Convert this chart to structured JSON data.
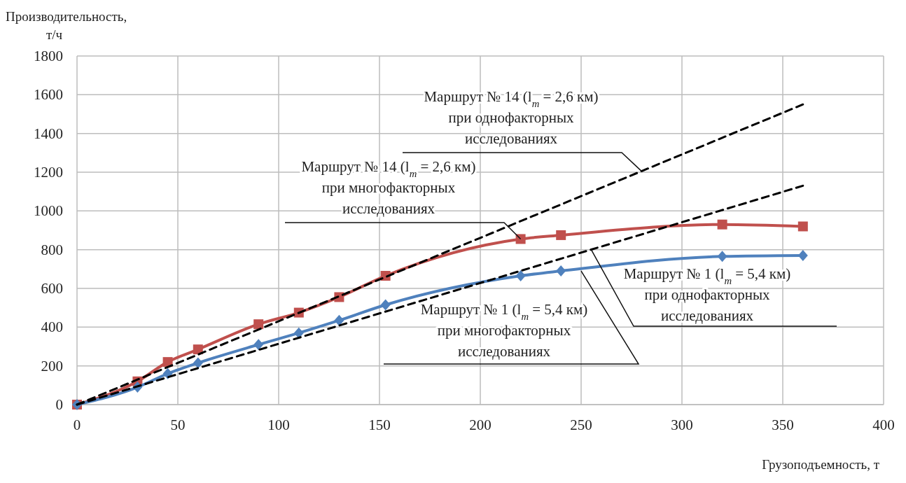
{
  "chart_data": {
    "type": "line",
    "xlabel": "Грузоподъемность, т",
    "ylabel": "Производительность,\nт/ч",
    "xlim": [
      0,
      400
    ],
    "xticks": [
      0,
      50,
      100,
      150,
      200,
      250,
      300,
      350,
      400
    ],
    "ylim": [
      0,
      1800
    ],
    "yticks": [
      0,
      200,
      400,
      600,
      800,
      1000,
      1200,
      1400,
      1600,
      1800
    ],
    "grid": true,
    "series": [
      {
        "color": "#c0504d",
        "marker": "square",
        "line_style": "solid",
        "x": [
          0,
          30,
          45,
          60,
          90,
          110,
          130,
          153,
          220,
          240,
          320,
          360
        ],
        "values": [
          0,
          120,
          220,
          285,
          415,
          475,
          555,
          665,
          855,
          875,
          930,
          920
        ]
      },
      {
        "color": "#4f81bd",
        "marker": "diamond",
        "line_style": "solid",
        "x": [
          0,
          30,
          45,
          60,
          90,
          110,
          130,
          153,
          220,
          240,
          320,
          360
        ],
        "values": [
          0,
          90,
          160,
          215,
          310,
          370,
          435,
          515,
          665,
          690,
          765,
          770
        ]
      },
      {
        "color": "#000000",
        "marker": "none",
        "line_style": "dashed",
        "x": [
          0,
          360
        ],
        "values": [
          0,
          1550
        ]
      },
      {
        "color": "#000000",
        "marker": "none",
        "line_style": "dashed",
        "x": [
          0,
          360
        ],
        "values": [
          0,
          1130
        ]
      }
    ],
    "annotations": [
      {
        "text": "Маршрут № 14 (l$_{m}$ = 2,6 км)\nпри однофакторных\nисследованиях",
        "x": 280,
        "y": 1205
      },
      {
        "text": "Маршрут № 14 (l$_{m}$ = 2,6 км)\nпри многофакторных\nисследованиях",
        "x": 220,
        "y": 855
      },
      {
        "text": "Маршрут № 1 (l$_{m}$ = 5,4 км)\nпри однофакторных\nисследованиях",
        "x": 255,
        "y": 800
      },
      {
        "text": "Маршрут № 1 (l$_{m}$ = 5,4 км)\nпри многофакторных\nисследованиях",
        "x": 250,
        "y": 690
      }
    ]
  }
}
